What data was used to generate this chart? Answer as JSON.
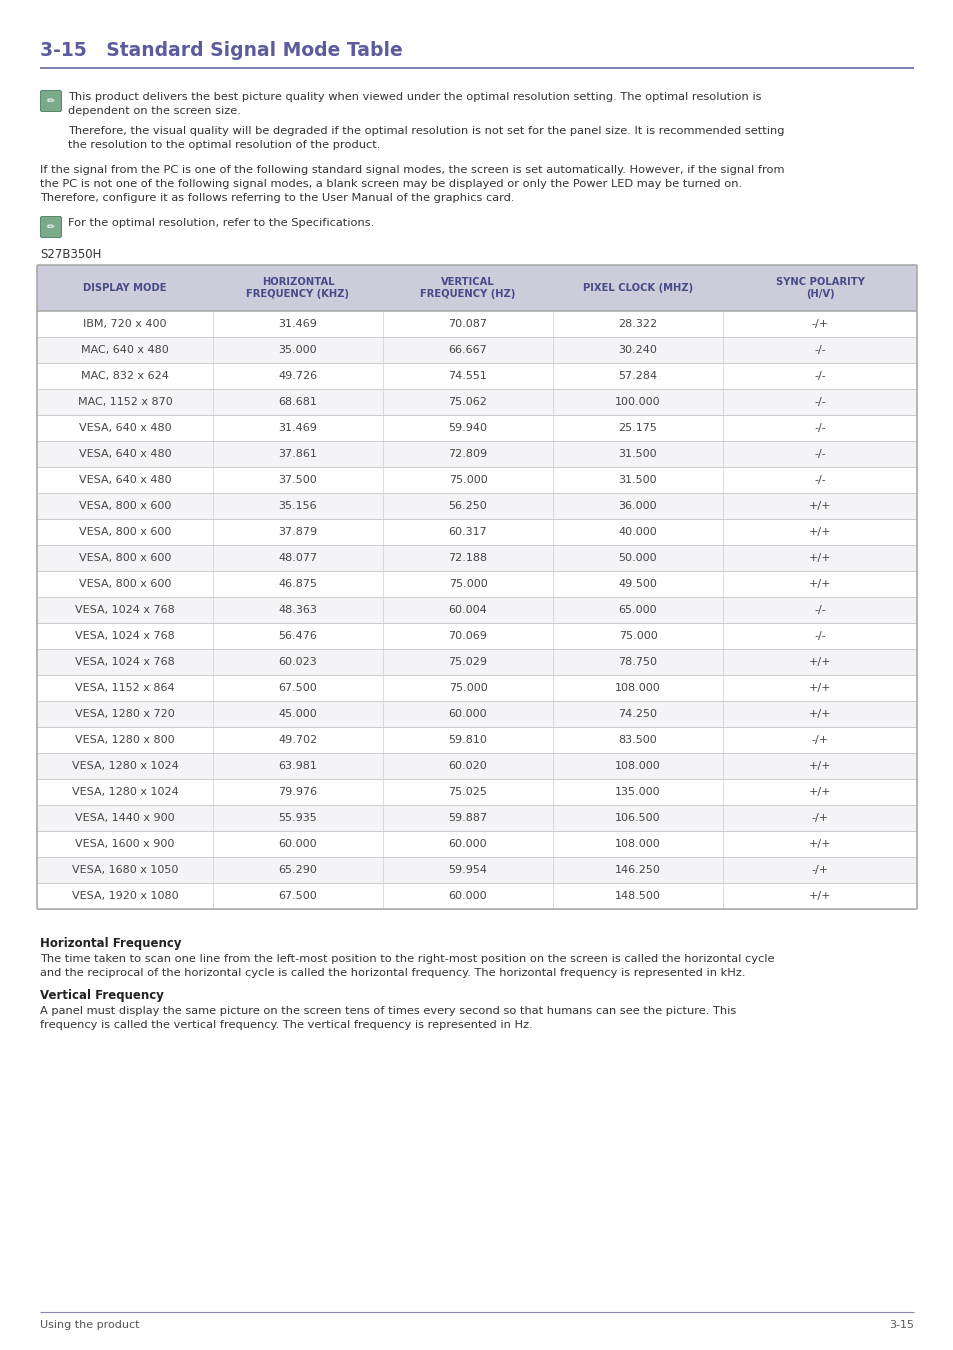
{
  "title": "3-15   Standard Signal Mode Table",
  "title_color": "#5b5b9e",
  "title_fontsize": 13.5,
  "note1_line1": "This product delivers the best picture quality when viewed under the optimal resolution setting. The optimal resolution is",
  "note1_line2": "dependent on the screen size.",
  "note2_line1": "Therefore, the visual quality will be degraded if the optimal resolution is not set for the panel size. It is recommended setting",
  "note2_line2": "the resolution to the optimal resolution of the product.",
  "body_text_line1": "If the signal from the PC is one of the following standard signal modes, the screen is set automatically. However, if the signal from",
  "body_text_line2": "the PC is not one of the following signal modes, a blank screen may be displayed or only the Power LED may be turned on.",
  "body_text_line3": "Therefore, configure it as follows referring to the User Manual of the graphics card.",
  "note3": "For the optimal resolution, refer to the Specifications.",
  "model": "S27B350H",
  "header": [
    "DISPLAY MODE",
    "HORIZONTAL\nFREQUENCY (KHZ)",
    "VERTICAL\nFREQUENCY (HZ)",
    "PIXEL CLOCK (MHZ)",
    "SYNC POLARITY\n(H/V)"
  ],
  "header_bg": "#ccccda",
  "header_color": "#4a4a8a",
  "rows": [
    [
      "IBM, 720 x 400",
      "31.469",
      "70.087",
      "28.322",
      "-/+"
    ],
    [
      "MAC, 640 x 480",
      "35.000",
      "66.667",
      "30.240",
      "-/-"
    ],
    [
      "MAC, 832 x 624",
      "49.726",
      "74.551",
      "57.284",
      "-/-"
    ],
    [
      "MAC, 1152 x 870",
      "68.681",
      "75.062",
      "100.000",
      "-/-"
    ],
    [
      "VESA, 640 x 480",
      "31.469",
      "59.940",
      "25.175",
      "-/-"
    ],
    [
      "VESA, 640 x 480",
      "37.861",
      "72.809",
      "31.500",
      "-/-"
    ],
    [
      "VESA, 640 x 480",
      "37.500",
      "75.000",
      "31.500",
      "-/-"
    ],
    [
      "VESA, 800 x 600",
      "35.156",
      "56.250",
      "36.000",
      "+/+"
    ],
    [
      "VESA, 800 x 600",
      "37.879",
      "60.317",
      "40.000",
      "+/+"
    ],
    [
      "VESA, 800 x 600",
      "48.077",
      "72.188",
      "50.000",
      "+/+"
    ],
    [
      "VESA, 800 x 600",
      "46.875",
      "75.000",
      "49.500",
      "+/+"
    ],
    [
      "VESA, 1024 x 768",
      "48.363",
      "60.004",
      "65.000",
      "-/-"
    ],
    [
      "VESA, 1024 x 768",
      "56.476",
      "70.069",
      "75.000",
      "-/-"
    ],
    [
      "VESA, 1024 x 768",
      "60.023",
      "75.029",
      "78.750",
      "+/+"
    ],
    [
      "VESA, 1152 x 864",
      "67.500",
      "75.000",
      "108.000",
      "+/+"
    ],
    [
      "VESA, 1280 x 720",
      "45.000",
      "60.000",
      "74.250",
      "+/+"
    ],
    [
      "VESA, 1280 x 800",
      "49.702",
      "59.810",
      "83.500",
      "-/+"
    ],
    [
      "VESA, 1280 x 1024",
      "63.981",
      "60.020",
      "108.000",
      "+/+"
    ],
    [
      "VESA, 1280 x 1024",
      "79.976",
      "75.025",
      "135.000",
      "+/+"
    ],
    [
      "VESA, 1440 x 900",
      "55.935",
      "59.887",
      "106.500",
      "-/+"
    ],
    [
      "VESA, 1600 x 900",
      "60.000",
      "60.000",
      "108.000",
      "+/+"
    ],
    [
      "VESA, 1680 x 1050",
      "65.290",
      "59.954",
      "146.250",
      "-/+"
    ],
    [
      "VESA, 1920 x 1080",
      "67.500",
      "60.000",
      "148.500",
      "+/+"
    ]
  ],
  "row_bg_white": "#ffffff",
  "row_bg_gray": "#f4f4f7",
  "row_text_color": "#444444",
  "section_line_color": "#6666aa",
  "table_border_color": "#aaaaaa",
  "row_divider_color": "#cccccc",
  "hfreq_title": "Horizontal Frequency",
  "hfreq_body_line1": "The time taken to scan one line from the left-most position to the right-most position on the screen is called the horizontal cycle",
  "hfreq_body_line2": "and the reciprocal of the horizontal cycle is called the horizontal frequency. The horizontal frequency is represented in kHz.",
  "vfreq_title": "Vertical Frequency",
  "vfreq_body_line1": "A panel must display the same picture on the screen tens of times every second so that humans can see the picture. This",
  "vfreq_body_line2": "frequency is called the vertical frequency. The vertical frequency is represented in Hz.",
  "footer_left": "Using the product",
  "footer_right": "3-15",
  "footer_line_color": "#8888aa",
  "icon_bg": "#7aaa8a",
  "icon_border": "#5a8a6a",
  "text_color_dark": "#333333",
  "text_color_body": "#444444"
}
